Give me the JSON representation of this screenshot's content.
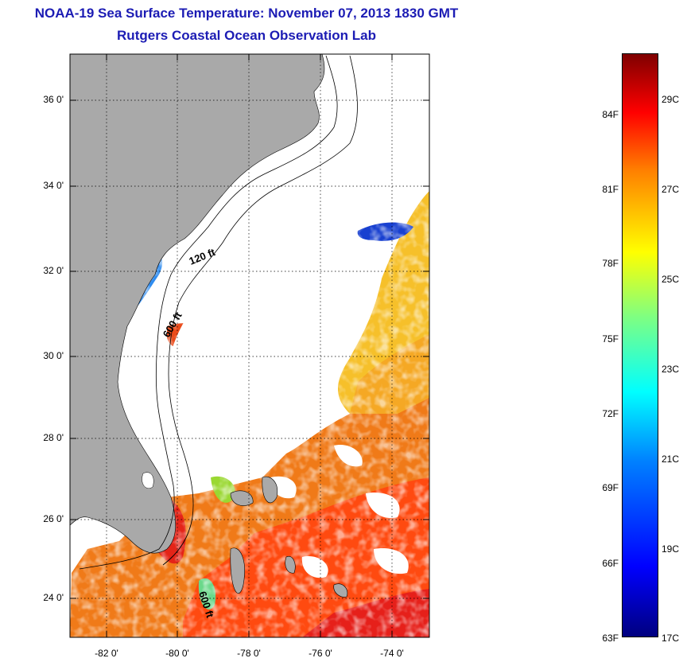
{
  "title": "NOAA-19 Sea Surface Temperature:  November 07, 2013 1830 GMT",
  "subtitle": "Rutgers Coastal Ocean Observation Lab",
  "map": {
    "lat_labels": [
      "36 0'",
      "34 0'",
      "32 0'",
      "30 0'",
      "28 0'",
      "26 0'",
      "24 0'"
    ],
    "lon_labels": [
      "-82 0'",
      "-80 0'",
      "-78 0'",
      "-76 0'",
      "-74 0'"
    ],
    "contour_labels": {
      "shelf_120": "120 ft",
      "shelf_600_north": "600 ft",
      "shelf_600_south": "600 ft"
    },
    "colors": {
      "land": "#a9a9a9",
      "ocean_nodata": "#ffffff",
      "grid": "#000000"
    }
  },
  "colorbar": {
    "fahrenheit": [
      "84F",
      "81F",
      "78F",
      "75F",
      "72F",
      "69F",
      "66F",
      "63F"
    ],
    "celsius": [
      "29C",
      "27C",
      "25C",
      "23C",
      "21C",
      "19C",
      "17C"
    ]
  }
}
